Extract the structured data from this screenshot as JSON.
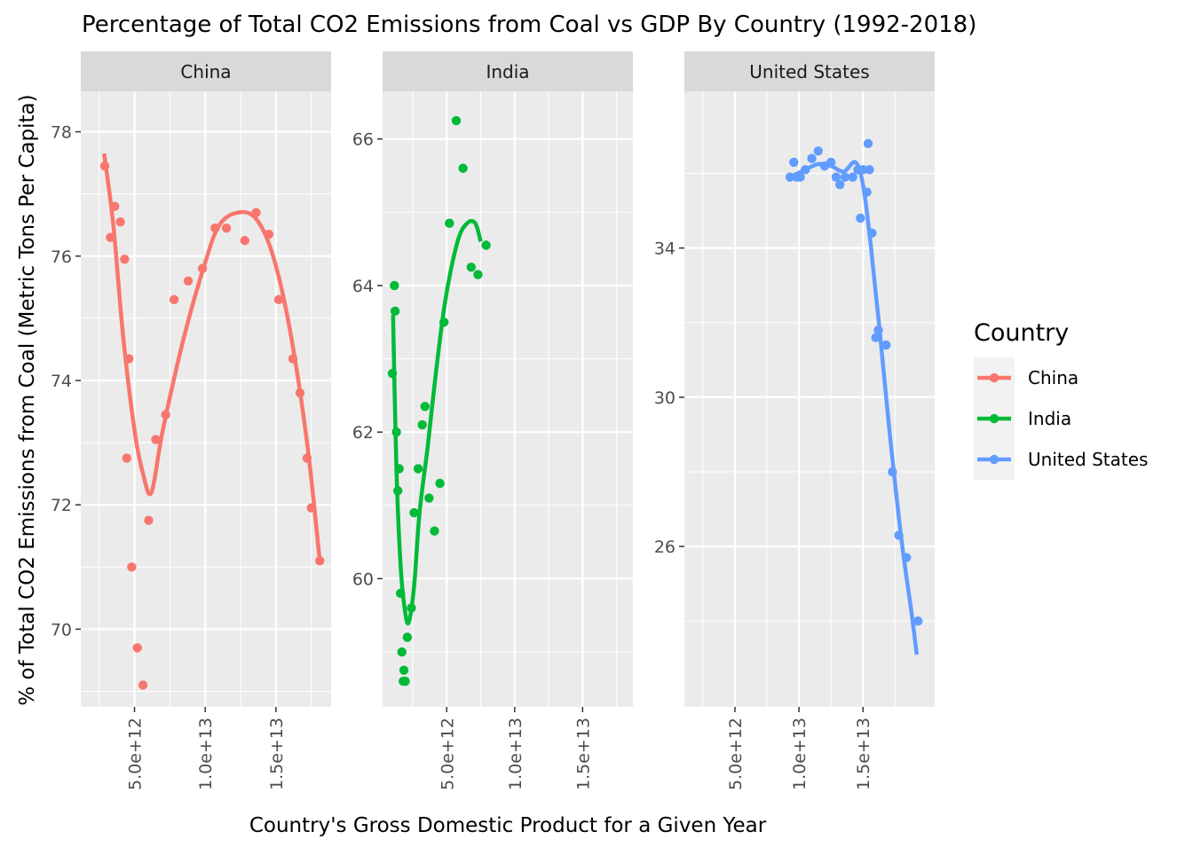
{
  "chart_data": {
    "type": "scatter",
    "title": "Percentage of Total CO2 Emissions from Coal vs GDP By Country (1992-2018)",
    "xlabel": "Country's Gross Domestic Product for a Given Year",
    "ylabel": "% of Total CO2 Emissions from Coal (Metric Tons Per Capita)",
    "x_ticks": [
      "5.0e+12",
      "1.0e+13",
      "1.5e+13"
    ],
    "legend": {
      "title": "Country",
      "position": "right"
    },
    "grid": true,
    "panels": [
      {
        "name": "China",
        "color": "#F8766D",
        "xlim": [
          1200000000000.0,
          18900000000000.0
        ],
        "ylim": [
          68.75,
          78.65
        ],
        "y_ticks": [
          70,
          72,
          74,
          76,
          78
        ],
        "points": [
          [
            2900000000000.0,
            77.45
          ],
          [
            3300000000000.0,
            76.3
          ],
          [
            3600000000000.0,
            76.8
          ],
          [
            4000000000000.0,
            76.55
          ],
          [
            4300000000000.0,
            75.95
          ],
          [
            4600000000000.0,
            74.35
          ],
          [
            4450000000000.0,
            72.75
          ],
          [
            4800000000000.0,
            71.0
          ],
          [
            5200000000000.0,
            69.7
          ],
          [
            5600000000000.0,
            69.1
          ],
          [
            6000000000000.0,
            71.75
          ],
          [
            6500000000000.0,
            73.05
          ],
          [
            7200000000000.0,
            73.45
          ],
          [
            7800000000000.0,
            75.3
          ],
          [
            8800000000000.0,
            75.6
          ],
          [
            9800000000000.0,
            75.8
          ],
          [
            10700000000000.0,
            76.45
          ],
          [
            11500000000000.0,
            76.45
          ],
          [
            12800000000000.0,
            76.25
          ],
          [
            13600000000000.0,
            76.7
          ],
          [
            14500000000000.0,
            76.35
          ],
          [
            15200000000000.0,
            75.3
          ],
          [
            16200000000000.0,
            74.35
          ],
          [
            16700000000000.0,
            73.8
          ],
          [
            17200000000000.0,
            72.75
          ],
          [
            17500000000000.0,
            71.95
          ],
          [
            18100000000000.0,
            71.1
          ]
        ],
        "smooth": [
          [
            2850000000000.0,
            77.65
          ],
          [
            3500000000000.0,
            76.5
          ],
          [
            4200000000000.0,
            74.7
          ],
          [
            5000000000000.0,
            73.2
          ],
          [
            5600000000000.0,
            72.5
          ],
          [
            6200000000000.0,
            72.2
          ],
          [
            7000000000000.0,
            73.2
          ],
          [
            8500000000000.0,
            74.7
          ],
          [
            10000000000000.0,
            75.9
          ],
          [
            11000000000000.0,
            76.5
          ],
          [
            12300000000000.0,
            76.7
          ],
          [
            13600000000000.0,
            76.6
          ],
          [
            14800000000000.0,
            76.0
          ],
          [
            16000000000000.0,
            74.8
          ],
          [
            17200000000000.0,
            73.0
          ],
          [
            18100000000000.0,
            71.1
          ]
        ]
      },
      {
        "name": "India",
        "color": "#00BA38",
        "xlim": [
          280000000000.0,
          18700000000000.0
        ],
        "ylim": [
          58.25,
          66.65
        ],
        "y_ticks": [
          60,
          62,
          64,
          66
        ],
        "points": [
          [
            1000000000000.0,
            62.8
          ],
          [
            1150000000000.0,
            64.0
          ],
          [
            1200000000000.0,
            63.65
          ],
          [
            1300000000000.0,
            62.0
          ],
          [
            1400000000000.0,
            61.2
          ],
          [
            1500000000000.0,
            61.5
          ],
          [
            1600000000000.0,
            59.8
          ],
          [
            1700000000000.0,
            59.0
          ],
          [
            1800000000000.0,
            58.6
          ],
          [
            1850000000000.0,
            58.75
          ],
          [
            1950000000000.0,
            58.6
          ],
          [
            2100000000000.0,
            59.2
          ],
          [
            2400000000000.0,
            59.6
          ],
          [
            2600000000000.0,
            60.9
          ],
          [
            2900000000000.0,
            61.5
          ],
          [
            3200000000000.0,
            62.1
          ],
          [
            3400000000000.0,
            62.35
          ],
          [
            3700000000000.0,
            61.1
          ],
          [
            4100000000000.0,
            60.65
          ],
          [
            4500000000000.0,
            61.3
          ],
          [
            4800000000000.0,
            63.5
          ],
          [
            5200000000000.0,
            64.85
          ],
          [
            5700000000000.0,
            66.25
          ],
          [
            6200000000000.0,
            65.6
          ],
          [
            6800000000000.0,
            64.25
          ],
          [
            7300000000000.0,
            64.15
          ],
          [
            7900000000000.0,
            64.55
          ]
        ],
        "smooth": [
          [
            1050000000000.0,
            63.6
          ],
          [
            1300000000000.0,
            61.5
          ],
          [
            1600000000000.0,
            60.2
          ],
          [
            1900000000000.0,
            59.6
          ],
          [
            2200000000000.0,
            59.4
          ],
          [
            2600000000000.0,
            59.9
          ],
          [
            3000000000000.0,
            60.9
          ],
          [
            3600000000000.0,
            61.8
          ],
          [
            4200000000000.0,
            62.8
          ],
          [
            4900000000000.0,
            63.8
          ],
          [
            5800000000000.0,
            64.6
          ],
          [
            6500000000000.0,
            64.85
          ],
          [
            7100000000000.0,
            64.85
          ],
          [
            7500000000000.0,
            64.6
          ]
        ]
      },
      {
        "name": "United States",
        "color": "#619CFF",
        "xlim": [
          1050000000000.0,
          20600000000000.0
        ],
        "ylim": [
          21.7,
          38.2
        ],
        "y_ticks": [
          26,
          30,
          34
        ],
        "points": [
          [
            9300000000000.0,
            35.9
          ],
          [
            9600000000000.0,
            36.3
          ],
          [
            9800000000000.0,
            35.9
          ],
          [
            10100000000000.0,
            35.9
          ],
          [
            10500000000000.0,
            36.1
          ],
          [
            11000000000000.0,
            36.4
          ],
          [
            11500000000000.0,
            36.6
          ],
          [
            12000000000000.0,
            36.2
          ],
          [
            12500000000000.0,
            36.3
          ],
          [
            12900000000000.0,
            35.9
          ],
          [
            13200000000000.0,
            35.7
          ],
          [
            13600000000000.0,
            35.9
          ],
          [
            14200000000000.0,
            35.9
          ],
          [
            14600000000000.0,
            36.1
          ],
          [
            14800000000000.0,
            34.8
          ],
          [
            15000000000000.0,
            36.1
          ],
          [
            15300000000000.0,
            35.5
          ],
          [
            15500000000000.0,
            36.1
          ],
          [
            15700000000000.0,
            34.4
          ],
          [
            15400000000000.0,
            36.8
          ],
          [
            16000000000000.0,
            31.6
          ],
          [
            16200000000000.0,
            31.8
          ],
          [
            16800000000000.0,
            31.4
          ],
          [
            17300000000000.0,
            28.0
          ],
          [
            17800000000000.0,
            26.3
          ],
          [
            18400000000000.0,
            25.7
          ],
          [
            19300000000000.0,
            24.0
          ]
        ],
        "smooth": [
          [
            9300000000000.0,
            35.9
          ],
          [
            10500000000000.0,
            36.1
          ],
          [
            11500000000000.0,
            36.25
          ],
          [
            12500000000000.0,
            36.2
          ],
          [
            13500000000000.0,
            36.05
          ],
          [
            14400000000000.0,
            36.3
          ],
          [
            15000000000000.0,
            35.7
          ],
          [
            15600000000000.0,
            34.1
          ],
          [
            16300000000000.0,
            31.8
          ],
          [
            17100000000000.0,
            29.0
          ],
          [
            18000000000000.0,
            26.2
          ],
          [
            18800000000000.0,
            24.2
          ],
          [
            19200000000000.0,
            23.1
          ]
        ]
      }
    ]
  }
}
